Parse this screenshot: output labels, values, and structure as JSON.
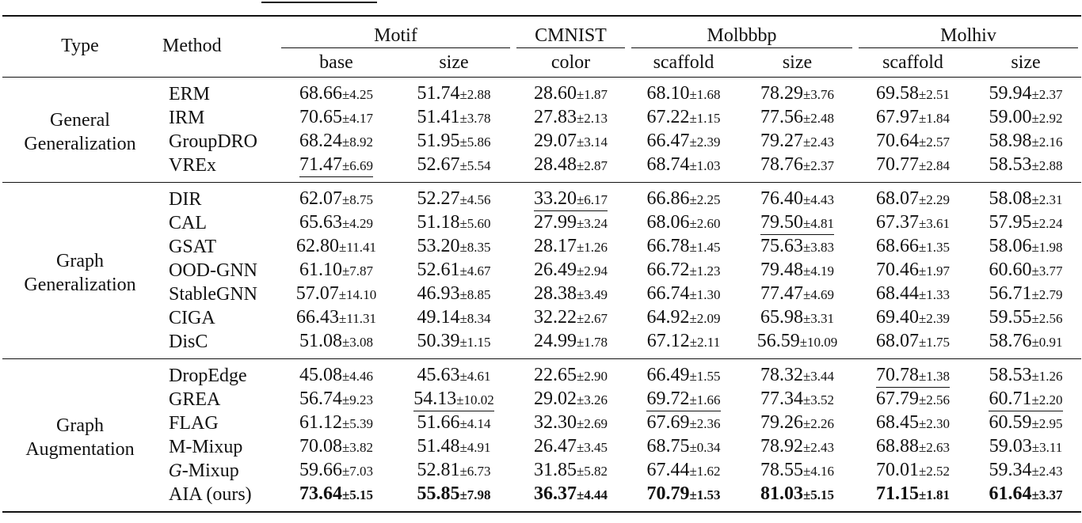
{
  "table": {
    "header": {
      "type_label": "Type",
      "method_label": "Method",
      "datasets": [
        {
          "name": "Motif",
          "splits": [
            "base",
            "size"
          ]
        },
        {
          "name": "CMNIST",
          "splits": [
            "color"
          ]
        },
        {
          "name": "Molbbbp",
          "splits": [
            "scaffold",
            "size"
          ]
        },
        {
          "name": "Molhiv",
          "splits": [
            "scaffold",
            "size"
          ]
        }
      ]
    },
    "sections": [
      {
        "type_line1": "General",
        "type_line2": "Generalization",
        "rows": [
          {
            "method": "ERM",
            "cells": [
              {
                "v": "68.66",
                "s": "±4.25"
              },
              {
                "v": "51.74",
                "s": "±2.88"
              },
              {
                "v": "28.60",
                "s": "±1.87"
              },
              {
                "v": "68.10",
                "s": "±1.68"
              },
              {
                "v": "78.29",
                "s": "±3.76"
              },
              {
                "v": "69.58",
                "s": "±2.51"
              },
              {
                "v": "59.94",
                "s": "±2.37"
              }
            ]
          },
          {
            "method": "IRM",
            "cells": [
              {
                "v": "70.65",
                "s": "±4.17"
              },
              {
                "v": "51.41",
                "s": "±3.78"
              },
              {
                "v": "27.83",
                "s": "±2.13"
              },
              {
                "v": "67.22",
                "s": "±1.15"
              },
              {
                "v": "77.56",
                "s": "±2.48"
              },
              {
                "v": "67.97",
                "s": "±1.84"
              },
              {
                "v": "59.00",
                "s": "±2.92"
              }
            ]
          },
          {
            "method": "GroupDRO",
            "cells": [
              {
                "v": "68.24",
                "s": "±8.92"
              },
              {
                "v": "51.95",
                "s": "±5.86"
              },
              {
                "v": "29.07",
                "s": "±3.14"
              },
              {
                "v": "66.47",
                "s": "±2.39"
              },
              {
                "v": "79.27",
                "s": "±2.43"
              },
              {
                "v": "70.64",
                "s": "±2.57"
              },
              {
                "v": "58.98",
                "s": "±2.16"
              }
            ]
          },
          {
            "method": "VREx",
            "cells": [
              {
                "v": "71.47",
                "s": "±6.69",
                "style": "underline"
              },
              {
                "v": "52.67",
                "s": "±5.54"
              },
              {
                "v": "28.48",
                "s": "±2.87"
              },
              {
                "v": "68.74",
                "s": "±1.03"
              },
              {
                "v": "78.76",
                "s": "±2.37"
              },
              {
                "v": "70.77",
                "s": "±2.84"
              },
              {
                "v": "58.53",
                "s": "±2.88"
              }
            ]
          }
        ]
      },
      {
        "type_line1": "Graph",
        "type_line2": "Generalization",
        "rows": [
          {
            "method": "DIR",
            "cells": [
              {
                "v": "62.07",
                "s": "±8.75"
              },
              {
                "v": "52.27",
                "s": "±4.56"
              },
              {
                "v": "33.20",
                "s": "±6.17",
                "style": "underline"
              },
              {
                "v": "66.86",
                "s": "±2.25"
              },
              {
                "v": "76.40",
                "s": "±4.43"
              },
              {
                "v": "68.07",
                "s": "±2.29"
              },
              {
                "v": "58.08",
                "s": "±2.31"
              }
            ]
          },
          {
            "method": "CAL",
            "cells": [
              {
                "v": "65.63",
                "s": "±4.29"
              },
              {
                "v": "51.18",
                "s": "±5.60"
              },
              {
                "v": "27.99",
                "s": "±3.24"
              },
              {
                "v": "68.06",
                "s": "±2.60"
              },
              {
                "v": "79.50",
                "s": "±4.81",
                "style": "underline"
              },
              {
                "v": "67.37",
                "s": "±3.61"
              },
              {
                "v": "57.95",
                "s": "±2.24"
              }
            ]
          },
          {
            "method": "GSAT",
            "cells": [
              {
                "v": "62.80",
                "s": "±11.41"
              },
              {
                "v": "53.20",
                "s": "±8.35"
              },
              {
                "v": "28.17",
                "s": "±1.26"
              },
              {
                "v": "66.78",
                "s": "±1.45"
              },
              {
                "v": "75.63",
                "s": "±3.83"
              },
              {
                "v": "68.66",
                "s": "±1.35"
              },
              {
                "v": "58.06",
                "s": "±1.98"
              }
            ]
          },
          {
            "method": "OOD-GNN",
            "cells": [
              {
                "v": "61.10",
                "s": "±7.87"
              },
              {
                "v": "52.61",
                "s": "±4.67"
              },
              {
                "v": "26.49",
                "s": "±2.94"
              },
              {
                "v": "66.72",
                "s": "±1.23"
              },
              {
                "v": "79.48",
                "s": "±4.19"
              },
              {
                "v": "70.46",
                "s": "±1.97"
              },
              {
                "v": "60.60",
                "s": "±3.77"
              }
            ]
          },
          {
            "method": "StableGNN",
            "cells": [
              {
                "v": "57.07",
                "s": "±14.10"
              },
              {
                "v": "46.93",
                "s": "±8.85"
              },
              {
                "v": "28.38",
                "s": "±3.49"
              },
              {
                "v": "66.74",
                "s": "±1.30"
              },
              {
                "v": "77.47",
                "s": "±4.69"
              },
              {
                "v": "68.44",
                "s": "±1.33"
              },
              {
                "v": "56.71",
                "s": "±2.79"
              }
            ]
          },
          {
            "method": "CIGA",
            "cells": [
              {
                "v": "66.43",
                "s": "±11.31"
              },
              {
                "v": "49.14",
                "s": "±8.34"
              },
              {
                "v": "32.22",
                "s": "±2.67"
              },
              {
                "v": "64.92",
                "s": "±2.09"
              },
              {
                "v": "65.98",
                "s": "±3.31"
              },
              {
                "v": "69.40",
                "s": "±2.39"
              },
              {
                "v": "59.55",
                "s": "±2.56"
              }
            ]
          },
          {
            "method": "DisC",
            "cells": [
              {
                "v": "51.08",
                "s": "±3.08"
              },
              {
                "v": "50.39",
                "s": "±1.15"
              },
              {
                "v": "24.99",
                "s": "±1.78"
              },
              {
                "v": "67.12",
                "s": "±2.11"
              },
              {
                "v": "56.59",
                "s": "±10.09"
              },
              {
                "v": "68.07",
                "s": "±1.75"
              },
              {
                "v": "58.76",
                "s": "±0.91"
              }
            ]
          }
        ]
      },
      {
        "type_line1": "Graph",
        "type_line2": "Augmentation",
        "rows": [
          {
            "method": "DropEdge",
            "cells": [
              {
                "v": "45.08",
                "s": "±4.46"
              },
              {
                "v": "45.63",
                "s": "±4.61"
              },
              {
                "v": "22.65",
                "s": "±2.90"
              },
              {
                "v": "66.49",
                "s": "±1.55"
              },
              {
                "v": "78.32",
                "s": "±3.44"
              },
              {
                "v": "70.78",
                "s": "±1.38",
                "style": "underline"
              },
              {
                "v": "58.53",
                "s": "±1.26"
              }
            ]
          },
          {
            "method": "GREA",
            "cells": [
              {
                "v": "56.74",
                "s": "±9.23"
              },
              {
                "v": "54.13",
                "s": "±10.02",
                "style": "underline"
              },
              {
                "v": "29.02",
                "s": "±3.26"
              },
              {
                "v": "69.72",
                "s": "±1.66",
                "style": "underline"
              },
              {
                "v": "77.34",
                "s": "±3.52"
              },
              {
                "v": "67.79",
                "s": "±2.56"
              },
              {
                "v": "60.71",
                "s": "±2.20",
                "style": "underline"
              }
            ]
          },
          {
            "method": "FLAG",
            "cells": [
              {
                "v": "61.12",
                "s": "±5.39"
              },
              {
                "v": "51.66",
                "s": "±4.14"
              },
              {
                "v": "32.30",
                "s": "±2.69"
              },
              {
                "v": "67.69",
                "s": "±2.36"
              },
              {
                "v": "79.26",
                "s": "±2.26"
              },
              {
                "v": "68.45",
                "s": "±2.30"
              },
              {
                "v": "60.59",
                "s": "±2.95"
              }
            ]
          },
          {
            "method": "M-Mixup",
            "cells": [
              {
                "v": "70.08",
                "s": "±3.82"
              },
              {
                "v": "51.48",
                "s": "±4.91"
              },
              {
                "v": "26.47",
                "s": "±3.45"
              },
              {
                "v": "68.75",
                "s": "±0.34"
              },
              {
                "v": "78.92",
                "s": "±2.43"
              },
              {
                "v": "68.88",
                "s": "±2.63"
              },
              {
                "v": "59.03",
                "s": "±3.11"
              }
            ]
          },
          {
            "method": "-Mixup",
            "method_prefix": "G",
            "cells": [
              {
                "v": "59.66",
                "s": "±7.03"
              },
              {
                "v": "52.81",
                "s": "±6.73"
              },
              {
                "v": "31.85",
                "s": "±5.82"
              },
              {
                "v": "67.44",
                "s": "±1.62"
              },
              {
                "v": "78.55",
                "s": "±4.16"
              },
              {
                "v": "70.01",
                "s": "±2.52"
              },
              {
                "v": "59.34",
                "s": "±2.43"
              }
            ]
          },
          {
            "method": "AIA (ours)",
            "cells": [
              {
                "v": "73.64",
                "s": "±5.15",
                "style": "bold"
              },
              {
                "v": "55.85",
                "s": "±7.98",
                "style": "bold"
              },
              {
                "v": "36.37",
                "s": "±4.44",
                "style": "bold"
              },
              {
                "v": "70.79",
                "s": "±1.53",
                "style": "bold"
              },
              {
                "v": "81.03",
                "s": "±5.15",
                "style": "bold"
              },
              {
                "v": "71.15",
                "s": "±1.81",
                "style": "bold"
              },
              {
                "v": "61.64",
                "s": "±3.37",
                "style": "bold"
              }
            ]
          }
        ]
      }
    ]
  },
  "chart_data": {
    "type": "table",
    "columns": [
      "Type",
      "Method",
      "Motif/base",
      "Motif/size",
      "CMNIST/color",
      "Molbbbp/scaffold",
      "Molbbbp/size",
      "Molhiv/scaffold",
      "Molhiv/size"
    ],
    "rows": [
      [
        "General Generalization",
        "ERM",
        "68.66±4.25",
        "51.74±2.88",
        "28.60±1.87",
        "68.10±1.68",
        "78.29±3.76",
        "69.58±2.51",
        "59.94±2.37"
      ],
      [
        "General Generalization",
        "IRM",
        "70.65±4.17",
        "51.41±3.78",
        "27.83±2.13",
        "67.22±1.15",
        "77.56±2.48",
        "67.97±1.84",
        "59.00±2.92"
      ],
      [
        "General Generalization",
        "GroupDRO",
        "68.24±8.92",
        "51.95±5.86",
        "29.07±3.14",
        "66.47±2.39",
        "79.27±2.43",
        "70.64±2.57",
        "58.98±2.16"
      ],
      [
        "General Generalization",
        "VREx",
        "71.47±6.69",
        "52.67±5.54",
        "28.48±2.87",
        "68.74±1.03",
        "78.76±2.37",
        "70.77±2.84",
        "58.53±2.88"
      ],
      [
        "Graph Generalization",
        "DIR",
        "62.07±8.75",
        "52.27±4.56",
        "33.20±6.17",
        "66.86±2.25",
        "76.40±4.43",
        "68.07±2.29",
        "58.08±2.31"
      ],
      [
        "Graph Generalization",
        "CAL",
        "65.63±4.29",
        "51.18±5.60",
        "27.99±3.24",
        "68.06±2.60",
        "79.50±4.81",
        "67.37±3.61",
        "57.95±2.24"
      ],
      [
        "Graph Generalization",
        "GSAT",
        "62.80±11.41",
        "53.20±8.35",
        "28.17±1.26",
        "66.78±1.45",
        "75.63±3.83",
        "68.66±1.35",
        "58.06±1.98"
      ],
      [
        "Graph Generalization",
        "OOD-GNN",
        "61.10±7.87",
        "52.61±4.67",
        "26.49±2.94",
        "66.72±1.23",
        "79.48±4.19",
        "70.46±1.97",
        "60.60±3.77"
      ],
      [
        "Graph Generalization",
        "StableGNN",
        "57.07±14.10",
        "46.93±8.85",
        "28.38±3.49",
        "66.74±1.30",
        "77.47±4.69",
        "68.44±1.33",
        "56.71±2.79"
      ],
      [
        "Graph Generalization",
        "CIGA",
        "66.43±11.31",
        "49.14±8.34",
        "32.22±2.67",
        "64.92±2.09",
        "65.98±3.31",
        "69.40±2.39",
        "59.55±2.56"
      ],
      [
        "Graph Generalization",
        "DisC",
        "51.08±3.08",
        "50.39±1.15",
        "24.99±1.78",
        "67.12±2.11",
        "56.59±10.09",
        "68.07±1.75",
        "58.76±0.91"
      ],
      [
        "Graph Augmentation",
        "DropEdge",
        "45.08±4.46",
        "45.63±4.61",
        "22.65±2.90",
        "66.49±1.55",
        "78.32±3.44",
        "70.78±1.38",
        "58.53±1.26"
      ],
      [
        "Graph Augmentation",
        "GREA",
        "56.74±9.23",
        "54.13±10.02",
        "29.02±3.26",
        "69.72±1.66",
        "77.34±3.52",
        "67.79±2.56",
        "60.71±2.20"
      ],
      [
        "Graph Augmentation",
        "FLAG",
        "61.12±5.39",
        "51.66±4.14",
        "32.30±2.69",
        "67.69±2.36",
        "79.26±2.26",
        "68.45±2.30",
        "60.59±2.95"
      ],
      [
        "Graph Augmentation",
        "M-Mixup",
        "70.08±3.82",
        "51.48±4.91",
        "26.47±3.45",
        "68.75±0.34",
        "78.92±2.43",
        "68.88±2.63",
        "59.03±3.11"
      ],
      [
        "Graph Augmentation",
        "G-Mixup",
        "59.66±7.03",
        "52.81±6.73",
        "31.85±5.82",
        "67.44±1.62",
        "78.55±4.16",
        "70.01±2.52",
        "59.34±2.43"
      ],
      [
        "Graph Augmentation",
        "AIA (ours)",
        "73.64±5.15",
        "55.85±7.98",
        "36.37±4.44",
        "70.79±1.53",
        "81.03±5.15",
        "71.15±1.81",
        "61.64±3.37"
      ]
    ],
    "emphasis": {
      "bold": "best (AIA row)",
      "underline": "second best"
    }
  }
}
